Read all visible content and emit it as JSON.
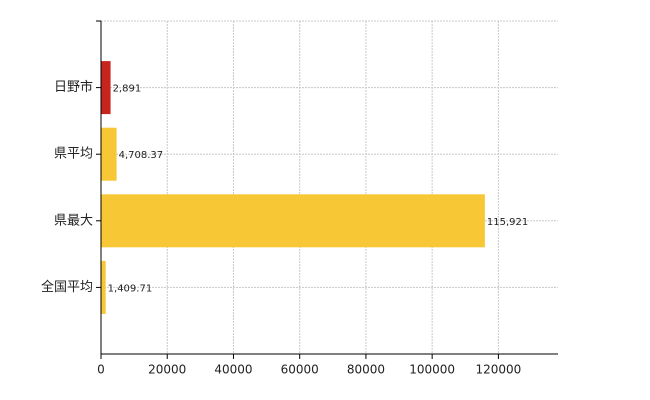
{
  "chart_data": {
    "type": "hbar",
    "categories": [
      "日野市",
      "県平均",
      "県最大",
      "全国平均"
    ],
    "values": [
      2891,
      4708.37,
      115921,
      1409.71
    ],
    "value_labels": [
      "2,891",
      "4,708.37",
      "115,921",
      "1,409.71"
    ],
    "colors": [
      "#c8241e",
      "#f7c735",
      "#f7c735",
      "#f7c735"
    ],
    "xlim": [
      0,
      138000
    ],
    "xticks": [
      0,
      20000,
      40000,
      60000,
      80000,
      100000,
      120000
    ],
    "grid": true
  }
}
